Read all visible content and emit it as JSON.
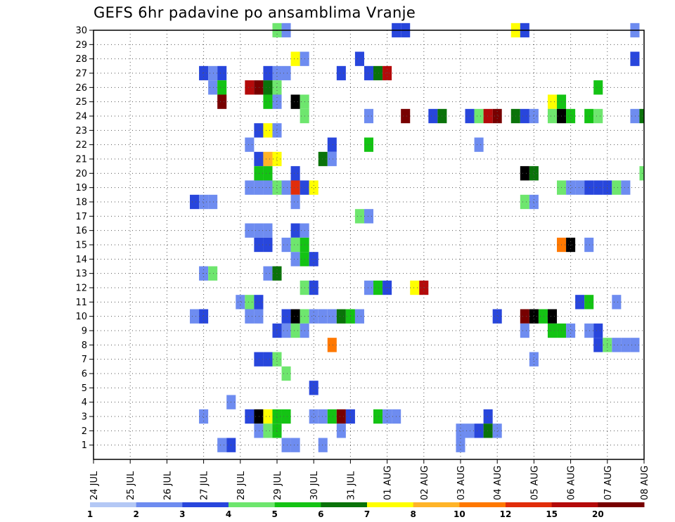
{
  "chart_data": {
    "type": "heatmap",
    "title": "GEFS 6hr padavine po ansamblima Vranje",
    "xlabel": "",
    "ylabel": "",
    "x_tick_labels": [
      "24 JUL",
      "25 JUL",
      "26 JUL",
      "27 JUL",
      "28 JUL",
      "29 JUL",
      "30 JUL",
      "31 JUL",
      "01 AUG",
      "02 AUG",
      "03 AUG",
      "04 AUG",
      "05 AUG",
      "06 AUG",
      "07 AUG",
      "08 AUG"
    ],
    "y_tick_labels": [
      "1",
      "2",
      "3",
      "4",
      "5",
      "6",
      "7",
      "8",
      "9",
      "10",
      "11",
      "12",
      "13",
      "14",
      "15",
      "16",
      "17",
      "18",
      "19",
      "20",
      "21",
      "22",
      "23",
      "24",
      "25",
      "26",
      "27",
      "28",
      "29",
      "30"
    ],
    "x_range": [
      0,
      60
    ],
    "y_range": [
      0,
      30
    ],
    "x_unit": "6-hour step from 24 JUL 00 UTC",
    "grid": true,
    "colorbar": {
      "position": "bottom",
      "bin_edges": [
        1,
        2,
        3,
        4,
        5,
        6,
        7,
        8,
        10,
        12,
        15,
        20
      ],
      "tick_labels": [
        "1",
        "2",
        "3",
        "4",
        "5",
        "6",
        "7",
        "8",
        "10",
        "12",
        "15",
        "20"
      ],
      "colors": [
        "#b4c8f5",
        "#6e8cf0",
        "#2846dc",
        "#6ee66e",
        "#14c314",
        "#0a730a",
        "#ffff00",
        "#ffb428",
        "#ff7800",
        "#e12d0a",
        "#b40a0a",
        "#780000"
      ]
    },
    "cells": [
      [
        30,
        20,
        3
      ],
      [
        30,
        21,
        1
      ],
      [
        30,
        33,
        2
      ],
      [
        30,
        34,
        2
      ],
      [
        30,
        46,
        6
      ],
      [
        30,
        47,
        2
      ],
      [
        30,
        59,
        1
      ],
      [
        28,
        22,
        6
      ],
      [
        28,
        23,
        1
      ],
      [
        28,
        29,
        2
      ],
      [
        28,
        59,
        2
      ],
      [
        27,
        12,
        2
      ],
      [
        27,
        13,
        1
      ],
      [
        27,
        14,
        2
      ],
      [
        27,
        19,
        2
      ],
      [
        27,
        20,
        1
      ],
      [
        27,
        21,
        1
      ],
      [
        27,
        27,
        2
      ],
      [
        27,
        30,
        2
      ],
      [
        27,
        31,
        5
      ],
      [
        27,
        32,
        10
      ],
      [
        26,
        13,
        1
      ],
      [
        26,
        14,
        4
      ],
      [
        26,
        17,
        10
      ],
      [
        26,
        18,
        11
      ],
      [
        26,
        19,
        5
      ],
      [
        26,
        20,
        3
      ],
      [
        26,
        55,
        4
      ],
      [
        25,
        14,
        11
      ],
      [
        25,
        19,
        4
      ],
      [
        25,
        20,
        1
      ],
      [
        25,
        22,
        15
      ],
      [
        25,
        23,
        3
      ],
      [
        25,
        50,
        6
      ],
      [
        25,
        51,
        4
      ],
      [
        24,
        23,
        3
      ],
      [
        24,
        30,
        1
      ],
      [
        24,
        34,
        11
      ],
      [
        24,
        37,
        2
      ],
      [
        24,
        38,
        5
      ],
      [
        24,
        41,
        2
      ],
      [
        24,
        42,
        3
      ],
      [
        24,
        43,
        10
      ],
      [
        24,
        44,
        11
      ],
      [
        24,
        46,
        5
      ],
      [
        24,
        47,
        2
      ],
      [
        24,
        48,
        1
      ],
      [
        24,
        50,
        3
      ],
      [
        24,
        51,
        12
      ],
      [
        24,
        52,
        4
      ],
      [
        24,
        54,
        4
      ],
      [
        24,
        55,
        3
      ],
      [
        24,
        59,
        1
      ],
      [
        24,
        60,
        5
      ],
      [
        23,
        18,
        2
      ],
      [
        23,
        19,
        6
      ],
      [
        23,
        20,
        1
      ],
      [
        22,
        17,
        1
      ],
      [
        22,
        26,
        2
      ],
      [
        22,
        30,
        4
      ],
      [
        22,
        42,
        1
      ],
      [
        21,
        18,
        2
      ],
      [
        21,
        19,
        7
      ],
      [
        21,
        20,
        6
      ],
      [
        21,
        25,
        5
      ],
      [
        21,
        26,
        1
      ],
      [
        20,
        18,
        4
      ],
      [
        20,
        19,
        4
      ],
      [
        20,
        22,
        2
      ],
      [
        20,
        47,
        12
      ],
      [
        20,
        48,
        5
      ],
      [
        20,
        60,
        3
      ],
      [
        19,
        17,
        1
      ],
      [
        19,
        18,
        1
      ],
      [
        19,
        19,
        1
      ],
      [
        19,
        20,
        3
      ],
      [
        19,
        21,
        1
      ],
      [
        19,
        22,
        9
      ],
      [
        19,
        23,
        2
      ],
      [
        19,
        24,
        6
      ],
      [
        19,
        51,
        3
      ],
      [
        19,
        52,
        1
      ],
      [
        19,
        53,
        1
      ],
      [
        19,
        54,
        2
      ],
      [
        19,
        55,
        2
      ],
      [
        19,
        56,
        2
      ],
      [
        19,
        57,
        3
      ],
      [
        19,
        58,
        1
      ],
      [
        18,
        11,
        2
      ],
      [
        18,
        12,
        1
      ],
      [
        18,
        13,
        1
      ],
      [
        18,
        22,
        1
      ],
      [
        18,
        47,
        3
      ],
      [
        18,
        48,
        1
      ],
      [
        17,
        29,
        3
      ],
      [
        17,
        30,
        1
      ],
      [
        16,
        17,
        1
      ],
      [
        16,
        18,
        1
      ],
      [
        16,
        19,
        1
      ],
      [
        16,
        22,
        2
      ],
      [
        16,
        23,
        1
      ],
      [
        15,
        18,
        2
      ],
      [
        15,
        19,
        2
      ],
      [
        15,
        21,
        1
      ],
      [
        15,
        22,
        3
      ],
      [
        15,
        23,
        4
      ],
      [
        15,
        51,
        8
      ],
      [
        15,
        52,
        13
      ],
      [
        15,
        54,
        1
      ],
      [
        14,
        22,
        1
      ],
      [
        14,
        23,
        4
      ],
      [
        14,
        24,
        2
      ],
      [
        13,
        12,
        1
      ],
      [
        13,
        13,
        3
      ],
      [
        13,
        19,
        1
      ],
      [
        13,
        20,
        5
      ],
      [
        12,
        23,
        3
      ],
      [
        12,
        24,
        2
      ],
      [
        12,
        30,
        1
      ],
      [
        12,
        31,
        4
      ],
      [
        12,
        32,
        2
      ],
      [
        12,
        35,
        6
      ],
      [
        12,
        36,
        10
      ],
      [
        11,
        16,
        1
      ],
      [
        11,
        17,
        3
      ],
      [
        11,
        18,
        2
      ],
      [
        11,
        53,
        2
      ],
      [
        11,
        54,
        4
      ],
      [
        11,
        57,
        1
      ],
      [
        10,
        11,
        1
      ],
      [
        10,
        12,
        2
      ],
      [
        10,
        17,
        1
      ],
      [
        10,
        18,
        1
      ],
      [
        10,
        21,
        2
      ],
      [
        10,
        22,
        15
      ],
      [
        10,
        23,
        3
      ],
      [
        10,
        24,
        1
      ],
      [
        10,
        25,
        1
      ],
      [
        10,
        26,
        1
      ],
      [
        10,
        27,
        5
      ],
      [
        10,
        28,
        4
      ],
      [
        10,
        29,
        1
      ],
      [
        10,
        44,
        2
      ],
      [
        10,
        47,
        11
      ],
      [
        10,
        48,
        14
      ],
      [
        10,
        49,
        4
      ],
      [
        10,
        50,
        14
      ],
      [
        9,
        20,
        2
      ],
      [
        9,
        21,
        1
      ],
      [
        9,
        22,
        3
      ],
      [
        9,
        23,
        1
      ],
      [
        9,
        47,
        1
      ],
      [
        9,
        50,
        4
      ],
      [
        9,
        51,
        4
      ],
      [
        9,
        52,
        1
      ],
      [
        9,
        54,
        1
      ],
      [
        9,
        55,
        2
      ],
      [
        8,
        26,
        8
      ],
      [
        8,
        55,
        2
      ],
      [
        8,
        56,
        3
      ],
      [
        8,
        57,
        1
      ],
      [
        8,
        58,
        1
      ],
      [
        8,
        59,
        1
      ],
      [
        7,
        18,
        2
      ],
      [
        7,
        19,
        2
      ],
      [
        7,
        20,
        3
      ],
      [
        7,
        48,
        1
      ],
      [
        6,
        21,
        3
      ],
      [
        5,
        24,
        2
      ],
      [
        4,
        15,
        1
      ],
      [
        3,
        12,
        1
      ],
      [
        3,
        17,
        2
      ],
      [
        3,
        18,
        12
      ],
      [
        3,
        19,
        6
      ],
      [
        3,
        20,
        4
      ],
      [
        3,
        21,
        4
      ],
      [
        3,
        24,
        1
      ],
      [
        3,
        25,
        1
      ],
      [
        3,
        26,
        4
      ],
      [
        3,
        27,
        11
      ],
      [
        3,
        28,
        2
      ],
      [
        3,
        31,
        4
      ],
      [
        3,
        32,
        1
      ],
      [
        3,
        33,
        1
      ],
      [
        3,
        43,
        2
      ],
      [
        2,
        18,
        1
      ],
      [
        2,
        19,
        3
      ],
      [
        2,
        20,
        4
      ],
      [
        2,
        27,
        1
      ],
      [
        2,
        40,
        1
      ],
      [
        2,
        41,
        1
      ],
      [
        2,
        42,
        2
      ],
      [
        2,
        43,
        5
      ],
      [
        2,
        44,
        1
      ],
      [
        1,
        14,
        1
      ],
      [
        1,
        15,
        2
      ],
      [
        1,
        21,
        1
      ],
      [
        1,
        22,
        1
      ],
      [
        1,
        25,
        1
      ],
      [
        1,
        40,
        1
      ]
    ]
  }
}
